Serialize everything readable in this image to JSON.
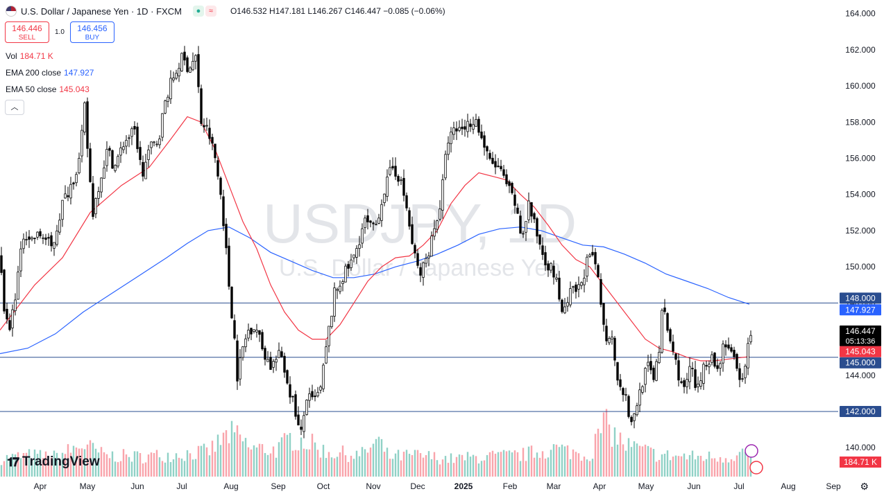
{
  "header": {
    "title": "U.S. Dollar / Japanese Yen · 1D · FXCM",
    "ohlc": {
      "o_label": "O",
      "o": "146.532",
      "h_label": "H",
      "h": "147.181",
      "l_label": "L",
      "l": "146.267",
      "c_label": "C",
      "c": "146.447",
      "change": "−0.085 (−0.06%)"
    }
  },
  "trade": {
    "sell_price": "146.446",
    "sell_label": "SELL",
    "spread": "1.0",
    "buy_price": "146.456",
    "buy_label": "BUY"
  },
  "legend": {
    "vol_label": "Vol",
    "vol_value": "184.71 K",
    "ema200_label": "EMA 200 close",
    "ema200_value": "147.927",
    "ema50_label": "EMA 50 close",
    "ema50_value": "145.043"
  },
  "branding": {
    "logo_text": "TradingView"
  },
  "watermark": {
    "symbol": "USDJPY, 1D",
    "description": "U.S. Dollar / Japanese Yen"
  },
  "colors": {
    "up": "#089981",
    "down": "#f23645",
    "ema200": "#2962ff",
    "ema50": "#f23645",
    "hline": "#2a4d8f",
    "candle": "#000000"
  },
  "chart_data": {
    "type": "candlestick",
    "symbol": "USDJPY",
    "timeframe": "1D",
    "ylim": [
      138.4,
      164.6
    ],
    "y_ticks": [
      "164.000",
      "162.000",
      "160.000",
      "158.000",
      "156.000",
      "154.000",
      "152.000",
      "150.000",
      "148.000",
      "146.000",
      "144.000",
      "142.000",
      "140.000"
    ],
    "x_ticks": [
      "Apr",
      "May",
      "Jun",
      "Jul",
      "Aug",
      "Sep",
      "Oct",
      "Nov",
      "Dec",
      "2025",
      "Feb",
      "Mar",
      "Apr",
      "May",
      "Jun",
      "Jul",
      "Aug",
      "Sep"
    ],
    "horizontal_lines": [
      148.0,
      145.0,
      142.0
    ],
    "price_labels": [
      {
        "text": "148.000",
        "value": 148.0,
        "kind": "hline"
      },
      {
        "text": "147.927",
        "value": 147.927,
        "kind": "ema200"
      },
      {
        "text": "146.447",
        "value": 146.447,
        "kind": "last",
        "countdown": "05:13:36"
      },
      {
        "text": "145.043",
        "value": 145.043,
        "kind": "ema50"
      },
      {
        "text": "145.000",
        "value": 145.0,
        "kind": "hline"
      },
      {
        "text": "142.000",
        "value": 142.0,
        "kind": "hline"
      }
    ],
    "volume_label": "184.71 K",
    "price_path": [
      [
        0,
        150.5
      ],
      [
        8,
        147.0
      ],
      [
        14,
        146.5
      ],
      [
        22,
        148.5
      ],
      [
        35,
        152.0
      ],
      [
        45,
        151.5
      ],
      [
        60,
        151.8
      ],
      [
        75,
        151.0
      ],
      [
        90,
        153.5
      ],
      [
        105,
        154.8
      ],
      [
        115,
        156.0
      ],
      [
        122,
        158.8
      ],
      [
        128,
        155.5
      ],
      [
        134,
        153.0
      ],
      [
        142,
        154.5
      ],
      [
        155,
        156.5
      ],
      [
        165,
        155.5
      ],
      [
        180,
        157.0
      ],
      [
        195,
        157.5
      ],
      [
        205,
        155.0
      ],
      [
        215,
        156.5
      ],
      [
        228,
        157.0
      ],
      [
        240,
        159.5
      ],
      [
        250,
        160.5
      ],
      [
        262,
        161.5
      ],
      [
        272,
        161.0
      ],
      [
        282,
        161.6
      ],
      [
        290,
        158.0
      ],
      [
        300,
        157.5
      ],
      [
        310,
        156.0
      ],
      [
        320,
        153.5
      ],
      [
        330,
        149.0
      ],
      [
        338,
        146.0
      ],
      [
        342,
        144.0
      ],
      [
        350,
        145.5
      ],
      [
        358,
        146.5
      ],
      [
        368,
        146.8
      ],
      [
        378,
        145.5
      ],
      [
        390,
        144.5
      ],
      [
        405,
        145.2
      ],
      [
        415,
        143.5
      ],
      [
        425,
        142.2
      ],
      [
        433,
        140.5
      ],
      [
        442,
        142.8
      ],
      [
        452,
        142.5
      ],
      [
        462,
        143.2
      ],
      [
        472,
        146.0
      ],
      [
        482,
        148.5
      ],
      [
        495,
        149.5
      ],
      [
        510,
        150.5
      ],
      [
        525,
        152.5
      ],
      [
        540,
        152.0
      ],
      [
        552,
        154.0
      ],
      [
        565,
        155.5
      ],
      [
        575,
        155.0
      ],
      [
        585,
        153.5
      ],
      [
        595,
        151.0
      ],
      [
        605,
        149.5
      ],
      [
        615,
        150.5
      ],
      [
        625,
        152.0
      ],
      [
        635,
        153.5
      ],
      [
        645,
        157.0
      ],
      [
        655,
        157.5
      ],
      [
        670,
        157.8
      ],
      [
        685,
        158.2
      ],
      [
        695,
        157.0
      ],
      [
        705,
        155.8
      ],
      [
        718,
        155.5
      ],
      [
        730,
        154.5
      ],
      [
        742,
        153.5
      ],
      [
        752,
        151.5
      ],
      [
        762,
        153.5
      ],
      [
        772,
        152.0
      ],
      [
        785,
        150.5
      ],
      [
        800,
        149.5
      ],
      [
        812,
        147.2
      ],
      [
        822,
        148.5
      ],
      [
        835,
        148.8
      ],
      [
        848,
        150.5
      ],
      [
        858,
        150.2
      ],
      [
        866,
        148.0
      ],
      [
        872,
        146.0
      ],
      [
        880,
        146.5
      ],
      [
        890,
        144.0
      ],
      [
        900,
        143.0
      ],
      [
        910,
        141.2
      ],
      [
        920,
        142.8
      ],
      [
        932,
        144.5
      ],
      [
        942,
        144.0
      ],
      [
        950,
        145.5
      ],
      [
        955,
        147.8
      ],
      [
        962,
        146.5
      ],
      [
        972,
        145.0
      ],
      [
        985,
        143.0
      ],
      [
        995,
        144.5
      ],
      [
        1005,
        143.0
      ],
      [
        1015,
        144.8
      ],
      [
        1025,
        145.0
      ],
      [
        1035,
        144.2
      ],
      [
        1043,
        146.0
      ],
      [
        1050,
        145.5
      ],
      [
        1060,
        144.5
      ],
      [
        1068,
        143.2
      ],
      [
        1075,
        145.0
      ],
      [
        1082,
        146.4
      ]
    ],
    "ema50_path": [
      [
        0,
        146.5
      ],
      [
        20,
        147.5
      ],
      [
        50,
        149.0
      ],
      [
        90,
        150.5
      ],
      [
        130,
        153.0
      ],
      [
        175,
        154.5
      ],
      [
        215,
        155.5
      ],
      [
        245,
        157.0
      ],
      [
        270,
        158.3
      ],
      [
        290,
        158.0
      ],
      [
        310,
        156.5
      ],
      [
        330,
        154.5
      ],
      [
        350,
        152.5
      ],
      [
        370,
        151.0
      ],
      [
        390,
        149.0
      ],
      [
        410,
        147.5
      ],
      [
        430,
        146.5
      ],
      [
        450,
        146.0
      ],
      [
        470,
        146.0
      ],
      [
        490,
        146.8
      ],
      [
        510,
        148.0
      ],
      [
        530,
        149.2
      ],
      [
        550,
        150.0
      ],
      [
        570,
        150.5
      ],
      [
        590,
        150.6
      ],
      [
        610,
        151.2
      ],
      [
        630,
        152.0
      ],
      [
        650,
        153.5
      ],
      [
        670,
        154.5
      ],
      [
        690,
        155.2
      ],
      [
        710,
        155.0
      ],
      [
        730,
        154.8
      ],
      [
        750,
        154.0
      ],
      [
        770,
        153.3
      ],
      [
        790,
        152.3
      ],
      [
        810,
        151.2
      ],
      [
        830,
        150.4
      ],
      [
        850,
        150.0
      ],
      [
        870,
        149.0
      ],
      [
        890,
        148.0
      ],
      [
        910,
        147.0
      ],
      [
        930,
        146.0
      ],
      [
        950,
        145.5
      ],
      [
        970,
        145.3
      ],
      [
        990,
        145.0
      ],
      [
        1010,
        144.8
      ],
      [
        1030,
        144.8
      ],
      [
        1050,
        144.9
      ],
      [
        1080,
        145.04
      ]
    ],
    "ema200_path": [
      [
        0,
        145.2
      ],
      [
        40,
        145.5
      ],
      [
        80,
        146.3
      ],
      [
        120,
        147.5
      ],
      [
        160,
        148.5
      ],
      [
        200,
        149.5
      ],
      [
        240,
        150.5
      ],
      [
        270,
        151.3
      ],
      [
        300,
        152.0
      ],
      [
        330,
        152.2
      ],
      [
        360,
        151.6
      ],
      [
        390,
        150.8
      ],
      [
        420,
        150.3
      ],
      [
        450,
        149.8
      ],
      [
        480,
        149.4
      ],
      [
        510,
        149.4
      ],
      [
        540,
        149.6
      ],
      [
        570,
        150.0
      ],
      [
        600,
        150.3
      ],
      [
        630,
        150.7
      ],
      [
        660,
        151.2
      ],
      [
        690,
        151.8
      ],
      [
        720,
        152.1
      ],
      [
        750,
        152.2
      ],
      [
        780,
        152.0
      ],
      [
        810,
        151.6
      ],
      [
        840,
        151.2
      ],
      [
        870,
        151.1
      ],
      [
        900,
        150.7
      ],
      [
        930,
        150.2
      ],
      [
        960,
        149.6
      ],
      [
        990,
        149.2
      ],
      [
        1020,
        148.8
      ],
      [
        1050,
        148.3
      ],
      [
        1080,
        147.93
      ]
    ],
    "volume_profile": [
      [
        0,
        0.25
      ],
      [
        40,
        0.3
      ],
      [
        80,
        0.28
      ],
      [
        120,
        0.45
      ],
      [
        150,
        0.3
      ],
      [
        200,
        0.28
      ],
      [
        260,
        0.32
      ],
      [
        300,
        0.35
      ],
      [
        330,
        0.6
      ],
      [
        345,
        0.55
      ],
      [
        360,
        0.4
      ],
      [
        400,
        0.38
      ],
      [
        420,
        0.55
      ],
      [
        440,
        0.5
      ],
      [
        470,
        0.35
      ],
      [
        520,
        0.3
      ],
      [
        545,
        0.5
      ],
      [
        560,
        0.28
      ],
      [
        600,
        0.3
      ],
      [
        650,
        0.25
      ],
      [
        700,
        0.28
      ],
      [
        750,
        0.3
      ],
      [
        800,
        0.4
      ],
      [
        850,
        0.3
      ],
      [
        870,
        0.75
      ],
      [
        885,
        0.6
      ],
      [
        900,
        0.45
      ],
      [
        950,
        0.3
      ],
      [
        1000,
        0.28
      ],
      [
        1050,
        0.28
      ],
      [
        1075,
        0.35
      ]
    ]
  }
}
